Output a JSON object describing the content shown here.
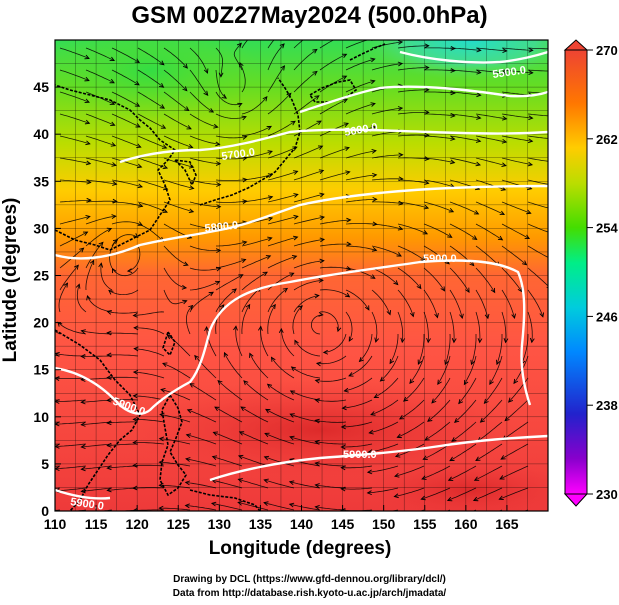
{
  "title": "GSM 00Z27May2024 (500.0hPa)",
  "x_axis": {
    "label": "Longitude (degrees)",
    "ticks": [
      "110",
      "115",
      "120",
      "125",
      "130",
      "135",
      "140",
      "145",
      "150",
      "155",
      "160",
      "165"
    ],
    "range": [
      110,
      170
    ]
  },
  "y_axis": {
    "label": "Latitude  (degrees)",
    "ticks": [
      "0",
      "5",
      "10",
      "15",
      "20",
      "25",
      "30",
      "35",
      "40",
      "45"
    ],
    "range": [
      0,
      50
    ]
  },
  "colorbar": {
    "ticks": [
      "230",
      "238",
      "246",
      "254",
      "262",
      "270"
    ],
    "range": [
      230,
      270
    ],
    "colors": [
      "#ff00ff",
      "#8800cc",
      "#2222cc",
      "#0066ff",
      "#00bbdd",
      "#00ee99",
      "#44dd00",
      "#aadd00",
      "#ffcc00",
      "#ff8800",
      "#ff5522",
      "#ee4433"
    ]
  },
  "contours": [
    {
      "label": "5500.0",
      "color": "#ffffff"
    },
    {
      "label": "5600.0",
      "color": "#ffffff"
    },
    {
      "label": "5700.0",
      "color": "#ffffff"
    },
    {
      "label": "5800.0",
      "color": "#ffffff"
    },
    {
      "label": "5900.0",
      "color": "#ffffff"
    },
    {
      "label": "5900.0",
      "color": "#ffffff"
    },
    {
      "label": "5900.0",
      "color": "#ffffff"
    },
    {
      "label": "5900.0",
      "color": "#ffffff"
    }
  ],
  "credits": {
    "line1": "Drawing by DCL (https://www.gfd-dennou.org/library/dcl/)",
    "line2": "Data from http://database.rish.kyoto-u.ac.jp/arch/jmadata/"
  }
}
